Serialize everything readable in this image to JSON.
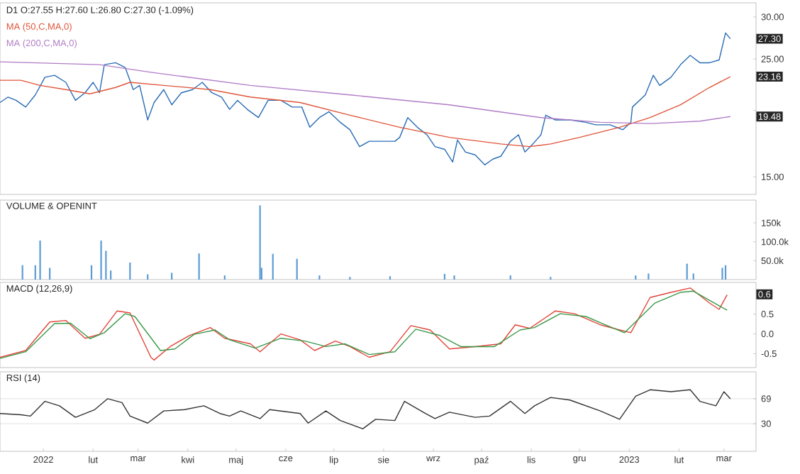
{
  "chart_data": [
    {
      "type": "line",
      "title": "D1 O:27.55 H:27.60 L:26.80 C:27.30 (-1.09%)",
      "log": "y",
      "legend": "top left",
      "tick_labels": "y",
      "xlim": [
        "2021-12-05",
        "2023-03-21"
      ],
      "ylim": [
        13.9,
        31.9
      ],
      "yticks": [
        {
          "value": 15,
          "label": "15.00"
        },
        {
          "value": 20,
          "label": null
        },
        {
          "value": 25,
          "label": "25.00"
        },
        {
          "value": 30,
          "label": "30.00"
        }
      ],
      "series": [
        {
          "color": "#2a6db5",
          "x": [
            "2021-12-05",
            "2021-12-10",
            "2021-12-15",
            "2021-12-21",
            "2021-12-27",
            "2022-01-02",
            "2022-01-08",
            "2022-01-15",
            "2022-01-21",
            "2022-01-27",
            "2022-02-01",
            "2022-02-05",
            "2022-02-08",
            "2022-02-15",
            "2022-02-21",
            "2022-02-26",
            "2022-03-02",
            "2022-03-07",
            "2022-03-11",
            "2022-03-17",
            "2022-03-22",
            "2022-03-28",
            "2022-04-04",
            "2022-04-10",
            "2022-04-16",
            "2022-04-22",
            "2022-04-27",
            "2022-05-02",
            "2022-05-08",
            "2022-05-15",
            "2022-05-21",
            "2022-05-29",
            "2022-06-05",
            "2022-06-11",
            "2022-06-16",
            "2022-06-22",
            "2022-06-28",
            "2022-07-05",
            "2022-07-11",
            "2022-07-17",
            "2022-07-23",
            "2022-07-30",
            "2022-08-08",
            "2022-08-11",
            "2022-08-16",
            "2022-08-22",
            "2022-08-28",
            "2022-09-02",
            "2022-09-08",
            "2022-09-13",
            "2022-09-16",
            "2022-09-21",
            "2022-09-27",
            "2022-10-03",
            "2022-10-08",
            "2022-10-13",
            "2022-10-19",
            "2022-10-24",
            "2022-10-28",
            "2022-11-02",
            "2022-11-07",
            "2022-11-10",
            "2022-11-16",
            "2022-11-25",
            "2022-12-05",
            "2022-12-11",
            "2022-12-20",
            "2022-12-28",
            "2023-01-02",
            "2023-01-03",
            "2023-01-11",
            "2023-01-16",
            "2023-01-20",
            "2023-01-27",
            "2023-02-02",
            "2023-02-08",
            "2023-02-14",
            "2023-02-20",
            "2023-02-26",
            "2023-03-02",
            "2023-03-05"
          ],
          "values": [
            20.7,
            21.2,
            20.9,
            20.3,
            21.4,
            23.1,
            23.3,
            22.6,
            20.9,
            21.6,
            22.6,
            21.6,
            24.4,
            24.6,
            24.1,
            21.9,
            22.3,
            19.2,
            20.7,
            21.9,
            20.5,
            21.6,
            21.9,
            22.6,
            21.6,
            21.2,
            20.1,
            20.9,
            20.1,
            19.4,
            20.9,
            20.9,
            20.3,
            20.3,
            18.6,
            19.4,
            19.9,
            19.0,
            18.4,
            17.1,
            17.5,
            17.5,
            17.5,
            17.8,
            19.4,
            18.6,
            18.0,
            17.1,
            16.9,
            16.0,
            17.6,
            16.7,
            16.5,
            15.8,
            16.2,
            16.4,
            17.5,
            18.0,
            16.7,
            17.3,
            18.0,
            19.6,
            19.2,
            19.2,
            19.0,
            18.8,
            18.8,
            18.4,
            19.0,
            20.3,
            21.4,
            23.3,
            22.3,
            23.1,
            24.4,
            25.4,
            24.6,
            24.6,
            24.9,
            28.0,
            27.3
          ]
        },
        {
          "name": "MA (50,C,MA,0)",
          "color": "#e0553a",
          "x": [
            "2021-12-05",
            "2021-12-18",
            "2021-12-30",
            "2022-01-15",
            "2022-01-30",
            "2022-02-15",
            "2022-02-24",
            "2022-03-17",
            "2022-04-15",
            "2022-05-10",
            "2022-06-10",
            "2022-07-11",
            "2022-08-11",
            "2022-09-11",
            "2022-10-13",
            "2022-10-31",
            "2022-11-13",
            "2022-12-01",
            "2022-12-26",
            "2023-01-14",
            "2023-02-02",
            "2023-02-20",
            "2023-03-05"
          ],
          "values": [
            22.8,
            22.8,
            22.3,
            21.9,
            21.5,
            22.1,
            22.6,
            22.3,
            21.9,
            21.2,
            20.7,
            19.6,
            18.6,
            17.8,
            17.3,
            17.1,
            17.3,
            17.8,
            18.6,
            19.4,
            20.5,
            22.1,
            23.16
          ]
        },
        {
          "name": "MA (200,C,MA,0)",
          "color": "#b07cc6",
          "x": [
            "2021-12-05",
            "2022-02-05",
            "2022-03-09",
            "2022-05-10",
            "2022-07-11",
            "2022-09-11",
            "2022-11-07",
            "2022-12-14",
            "2023-01-14",
            "2023-02-14",
            "2023-03-05"
          ],
          "values": [
            24.7,
            24.4,
            23.6,
            22.3,
            21.4,
            20.5,
            19.4,
            19.0,
            18.9,
            19.1,
            19.48
          ]
        }
      ],
      "annotations": [
        {
          "text": "27.30",
          "y": 27.3
        },
        {
          "text": "23.16",
          "y": 23.16
        },
        {
          "text": "19.48",
          "y": 19.48
        }
      ]
    },
    {
      "type": "bar",
      "title": "VOLUME & OPENINT",
      "tick_labels": "y",
      "xlim": [
        "2021-12-05",
        "2023-03-21"
      ],
      "ylim": [
        0,
        210000
      ],
      "yticks": [
        {
          "value": 50000,
          "label": "50.0k"
        },
        {
          "value": 100000,
          "label": "100.0k"
        },
        {
          "value": 150000,
          "label": "150k"
        }
      ],
      "color": "#5b9bd5",
      "x": [
        "2021-12-19",
        "2021-12-27",
        "2021-12-30",
        "2022-01-05",
        "2022-01-31",
        "2022-02-06",
        "2022-02-09",
        "2022-02-12",
        "2022-02-24",
        "2022-03-07",
        "2022-03-22",
        "2022-04-08",
        "2022-04-24",
        "2022-05-16",
        "2022-05-17",
        "2022-05-24",
        "2022-06-08",
        "2022-06-22",
        "2022-07-11",
        "2022-08-05",
        "2022-09-08",
        "2022-09-14",
        "2022-10-19",
        "2022-11-13",
        "2023-01-05",
        "2023-01-13",
        "2023-02-06",
        "2023-02-10",
        "2023-02-28",
        "2023-03-02"
      ],
      "values": [
        38000,
        38000,
        103000,
        31000,
        38000,
        103000,
        76000,
        24000,
        45000,
        14000,
        18000,
        69000,
        11000,
        196000,
        31000,
        68000,
        55000,
        11000,
        7000,
        9000,
        15000,
        11000,
        11000,
        7000,
        11000,
        16000,
        42000,
        16000,
        31000,
        38000
      ]
    },
    {
      "type": "line",
      "title": "MACD (12,26,9)",
      "tick_labels": "y",
      "xlim": [
        "2021-12-05",
        "2023-03-21"
      ],
      "ylim": [
        -0.85,
        1.3
      ],
      "yticks": [
        -0.5,
        {
          "value": 0,
          "label": "0.0"
        },
        0.5
      ],
      "series": [
        {
          "color": "#e0453a",
          "x": [
            "2021-12-05",
            "2021-12-21",
            "2022-01-05",
            "2022-01-15",
            "2022-01-27",
            "2022-02-05",
            "2022-02-16",
            "2022-02-24",
            "2022-03-09",
            "2022-03-11",
            "2022-03-21",
            "2022-04-02",
            "2022-04-15",
            "2022-04-24",
            "2022-05-10",
            "2022-05-16",
            "2022-05-29",
            "2022-06-10",
            "2022-06-19",
            "2022-07-02",
            "2022-07-11",
            "2022-07-23",
            "2022-08-05",
            "2022-08-18",
            "2022-08-30",
            "2022-09-11",
            "2022-09-27",
            "2022-10-13",
            "2022-10-22",
            "2022-10-31",
            "2022-11-16",
            "2022-11-28",
            "2022-12-14",
            "2022-12-26",
            "2023-01-02",
            "2023-01-14",
            "2023-01-27",
            "2023-02-08",
            "2023-02-20",
            "2023-02-26",
            "2023-03-03"
          ],
          "values": [
            -0.59,
            -0.42,
            0.3,
            0.34,
            -0.11,
            -0.01,
            0.58,
            0.53,
            -0.59,
            -0.66,
            -0.32,
            -0.04,
            0.16,
            -0.11,
            -0.25,
            -0.45,
            0.0,
            -0.15,
            -0.42,
            -0.18,
            -0.32,
            -0.59,
            -0.45,
            0.21,
            0.1,
            -0.38,
            -0.32,
            -0.25,
            0.23,
            0.14,
            0.58,
            0.51,
            0.23,
            0.1,
            0.03,
            0.92,
            1.05,
            1.16,
            0.78,
            0.62,
            0.99
          ]
        },
        {
          "color": "#3a9a4a",
          "x": [
            "2021-12-05",
            "2021-12-21",
            "2022-01-08",
            "2022-01-18",
            "2022-01-30",
            "2022-02-08",
            "2022-02-21",
            "2022-02-27",
            "2022-03-15",
            "2022-03-24",
            "2022-04-05",
            "2022-04-18",
            "2022-04-27",
            "2022-05-13",
            "2022-05-29",
            "2022-06-13",
            "2022-06-26",
            "2022-07-08",
            "2022-07-23",
            "2022-08-08",
            "2022-08-21",
            "2022-09-05",
            "2022-09-18",
            "2022-10-09",
            "2022-10-25",
            "2022-11-03",
            "2022-11-19",
            "2022-12-05",
            "2022-12-17",
            "2022-12-29",
            "2023-01-17",
            "2023-02-02",
            "2023-02-10",
            "2023-02-26",
            "2023-03-03"
          ],
          "values": [
            -0.62,
            -0.45,
            0.26,
            0.27,
            -0.12,
            0.03,
            0.51,
            0.44,
            -0.42,
            -0.38,
            -0.01,
            0.1,
            -0.15,
            -0.36,
            -0.11,
            -0.18,
            -0.32,
            -0.25,
            -0.52,
            -0.45,
            0.12,
            -0.04,
            -0.32,
            -0.32,
            0.1,
            0.16,
            0.51,
            0.44,
            0.23,
            0.03,
            0.78,
            1.05,
            1.08,
            0.71,
            0.6
          ]
        }
      ],
      "annotations": [
        "0.6"
      ]
    },
    {
      "type": "line",
      "title": "RSI (14)",
      "grid": "y",
      "xlim": [
        "2021-12-05",
        "2023-03-21"
      ],
      "ylim": [
        -13,
        111
      ],
      "xticks": [
        {
          "value": "2022-01-01",
          "label": "2022"
        },
        {
          "value": "2022-02-01",
          "label": "lut"
        },
        {
          "value": "2022-03-01",
          "label": "mar"
        },
        {
          "value": "2022-04-01",
          "label": "kwi"
        },
        {
          "value": "2022-05-01",
          "label": "maj"
        },
        {
          "value": "2022-06-01",
          "label": "cze"
        },
        {
          "value": "2022-07-01",
          "label": "lip"
        },
        {
          "value": "2022-08-01",
          "label": "sie"
        },
        {
          "value": "2022-09-01",
          "label": "wrz"
        },
        {
          "value": "2022-10-01",
          "label": "paź"
        },
        {
          "value": "2022-11-01",
          "label": "lis"
        },
        {
          "value": "2022-12-01",
          "label": "gru"
        },
        {
          "value": "2023-01-01",
          "label": "2023"
        },
        {
          "value": "2023-02-01",
          "label": "lut"
        },
        {
          "value": "2023-03-01",
          "label": "mar"
        }
      ],
      "yticks": [
        30,
        69
      ],
      "series": [
        {
          "color": "#333333",
          "x": [
            "2021-12-05",
            "2021-12-18",
            "2021-12-24",
            "2022-01-02",
            "2022-01-11",
            "2022-01-21",
            "2022-02-02",
            "2022-02-10",
            "2022-02-19",
            "2022-02-24",
            "2022-03-07",
            "2022-03-17",
            "2022-03-30",
            "2022-04-11",
            "2022-04-21",
            "2022-04-27",
            "2022-05-04",
            "2022-05-16",
            "2022-05-22",
            "2022-06-10",
            "2022-06-15",
            "2022-06-26",
            "2022-07-05",
            "2022-07-19",
            "2022-07-27",
            "2022-08-08",
            "2022-08-14",
            "2022-08-27",
            "2022-09-02",
            "2022-09-11",
            "2022-09-27",
            "2022-10-06",
            "2022-10-19",
            "2022-10-28",
            "2022-11-03",
            "2022-11-13",
            "2022-11-25",
            "2022-12-14",
            "2022-12-26",
            "2023-01-05",
            "2023-01-14",
            "2023-01-27",
            "2023-02-08",
            "2023-02-14",
            "2023-02-24",
            "2023-03-01",
            "2023-03-05"
          ],
          "values": [
            46,
            44,
            42,
            65,
            58,
            40,
            52,
            69,
            63,
            42,
            31,
            50,
            52,
            58,
            46,
            42,
            50,
            38,
            52,
            46,
            31,
            50,
            35,
            22,
            37,
            35,
            65,
            46,
            38,
            48,
            40,
            42,
            65,
            46,
            58,
            71,
            67,
            50,
            37,
            73,
            83,
            80,
            83,
            65,
            58,
            80,
            69
          ]
        }
      ]
    }
  ]
}
